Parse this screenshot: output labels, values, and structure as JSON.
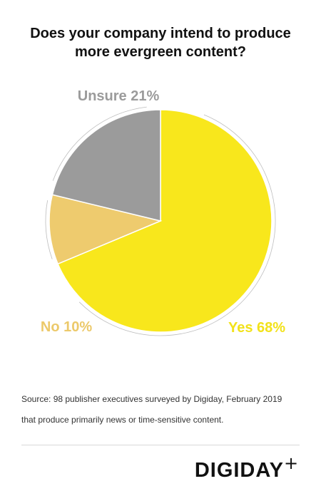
{
  "title": {
    "line1": "Does your company intend to produce",
    "line2": "more evergreen content?"
  },
  "chart_data": {
    "type": "pie",
    "title": "Does your company intend to produce more evergreen content?",
    "slices": [
      {
        "label": "Yes",
        "value": 68,
        "display": "Yes 68%",
        "color": "#f8e71c",
        "label_color": "#f2e21a"
      },
      {
        "label": "No",
        "value": 10,
        "display": "No 10%",
        "color": "#eecb6e",
        "label_color": "#ecc96a"
      },
      {
        "label": "Unsure",
        "value": 21,
        "display": "Unsure 21%",
        "color": "#9b9b9b",
        "label_color": "#9b9b9b"
      }
    ]
  },
  "source": {
    "line1": "Source: 98 publisher executives surveyed by Digiday,  February 2019",
    "line2": "that produce primarily news or time-sensitive content."
  },
  "brand": {
    "logo_text": "DIGIDAY",
    "plus": "+"
  }
}
